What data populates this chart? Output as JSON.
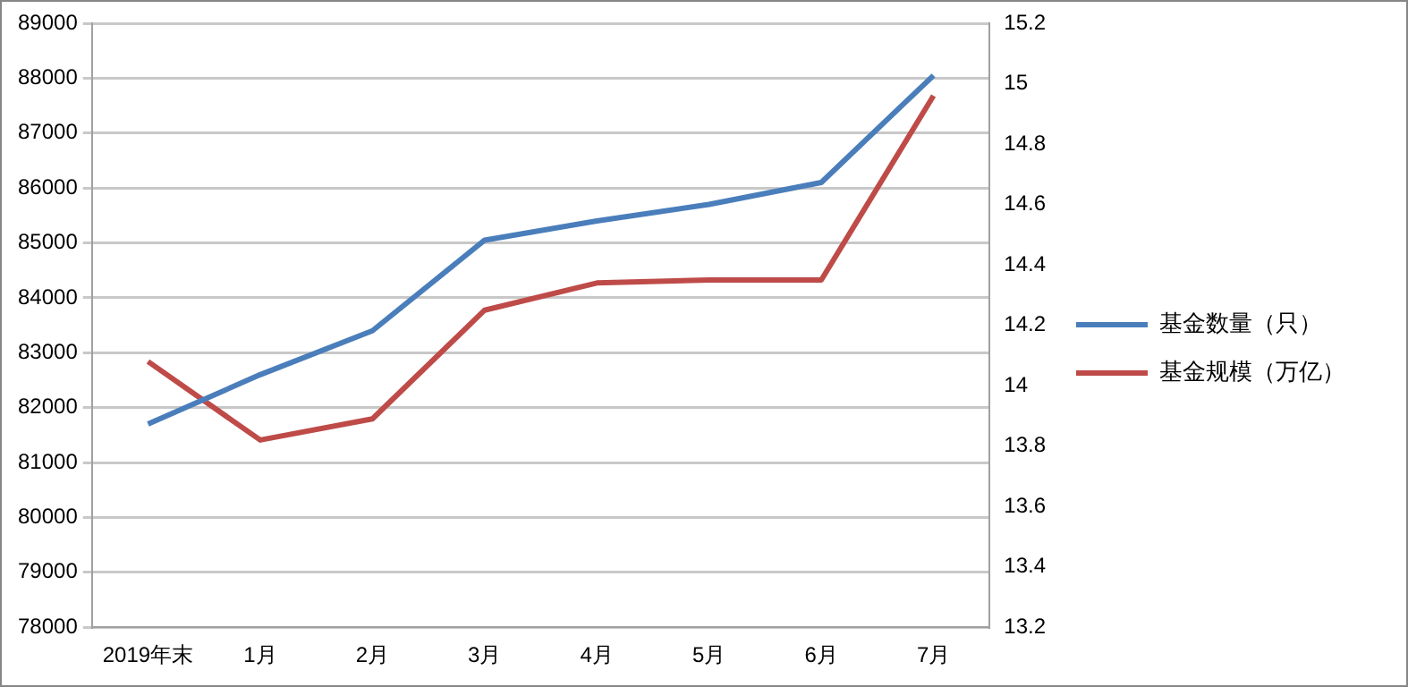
{
  "chart_data": {
    "type": "line",
    "categories": [
      "2019年末",
      "1月",
      "2月",
      "3月",
      "4月",
      "5月",
      "6月",
      "7月"
    ],
    "series": [
      {
        "name": "基金数量（只）",
        "color": "#4a7ebb",
        "values": [
          81700,
          82600,
          83400,
          85050,
          85400,
          85700,
          86100,
          88050
        ]
      },
      {
        "name": "基金规模（万亿）",
        "color": "#be4b48",
        "axis": "y2",
        "values": [
          14.08,
          13.82,
          13.89,
          14.25,
          14.34,
          14.35,
          14.35,
          14.96
        ]
      }
    ],
    "ylim": [
      78000,
      89000
    ],
    "yticks": [
      78000,
      79000,
      80000,
      81000,
      82000,
      83000,
      84000,
      85000,
      86000,
      87000,
      88000,
      89000
    ],
    "y2lim": [
      13.2,
      15.2
    ],
    "y2ticks": [
      13.2,
      13.4,
      13.6,
      13.8,
      14,
      14.2,
      14.4,
      14.6,
      14.8,
      15,
      15.2
    ],
    "grid": "y",
    "legend": "right",
    "marker": "none",
    "line_style": "solid"
  }
}
